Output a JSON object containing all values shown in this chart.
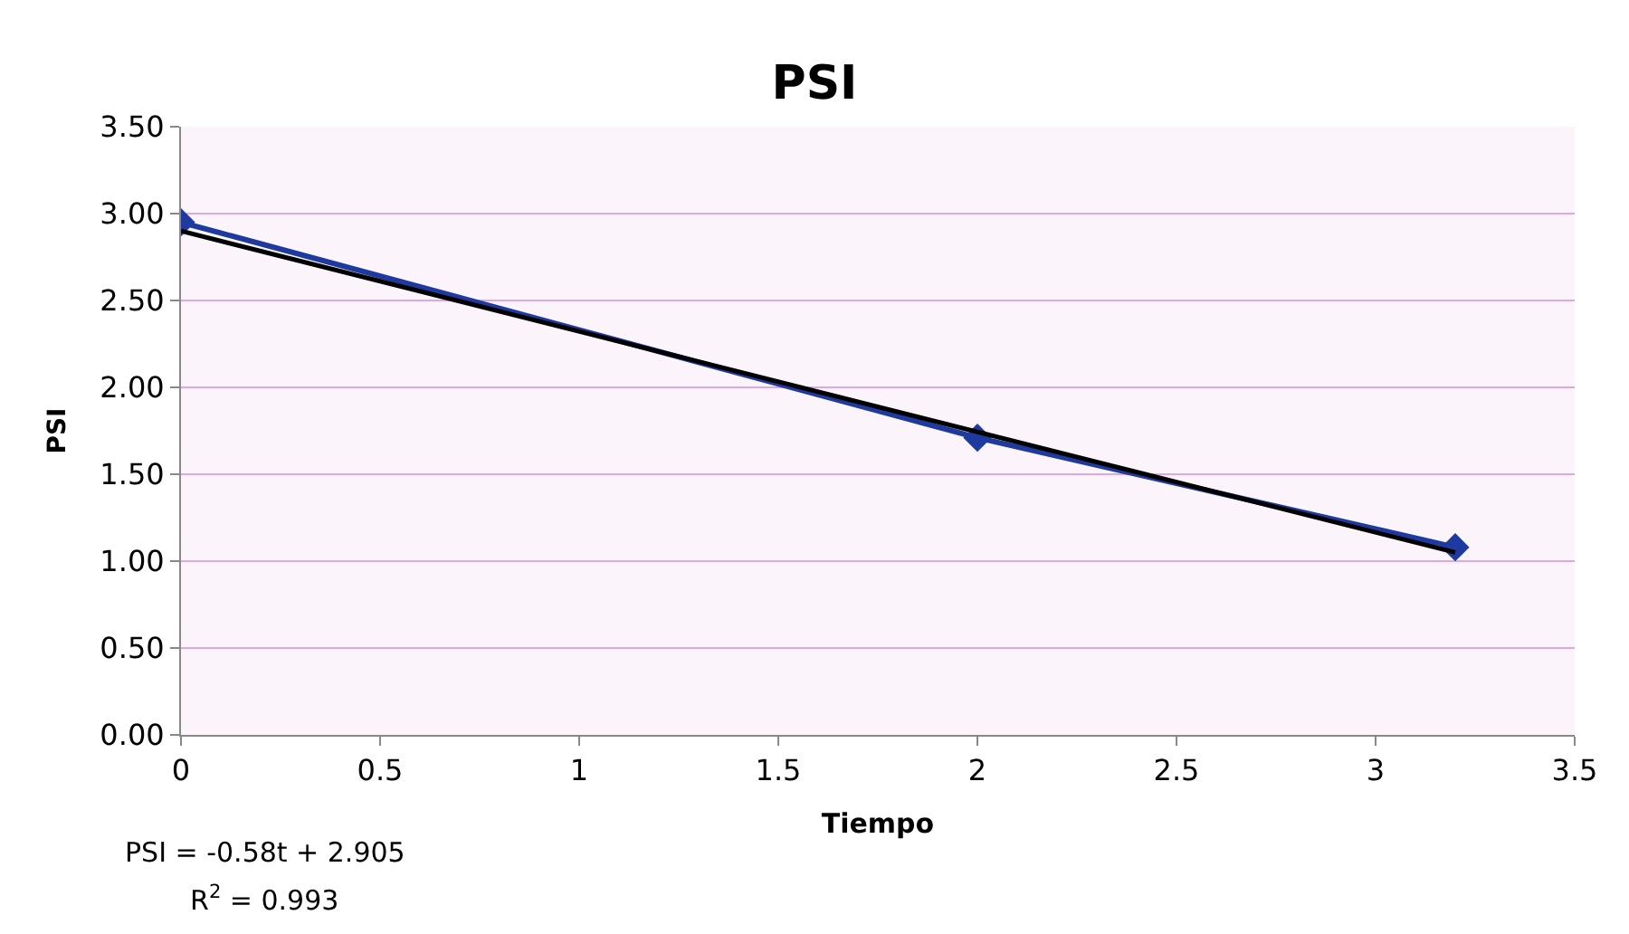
{
  "chart_data": {
    "type": "line",
    "title": "PSI",
    "xlabel": "Tiempo",
    "ylabel": "PSI",
    "x": [
      0,
      2,
      3.2
    ],
    "series": [
      {
        "color": "#1f3a9e",
        "values": [
          2.95,
          1.71,
          1.08
        ],
        "marker": "diamond"
      },
      {
        "type": "line",
        "color": "#000000",
        "x": [
          0,
          3.2
        ],
        "values": [
          2.9,
          1.05
        ],
        "marker": "none"
      }
    ],
    "xlim": [
      0,
      3.5
    ],
    "xticks": [
      0,
      0.5,
      1,
      1.5,
      2,
      2.5,
      3,
      3.5
    ],
    "ylim": [
      0,
      3.5
    ],
    "yticks": [
      {
        "value": 0,
        "label": "0.00"
      },
      {
        "value": 0.5,
        "label": "0.50"
      },
      {
        "value": 1,
        "label": "1.00"
      },
      {
        "value": 1.5,
        "label": "1.50"
      },
      {
        "value": 2,
        "label": "2.00"
      },
      {
        "value": 2.5,
        "label": "2.50"
      },
      {
        "value": 3,
        "label": "3.00"
      },
      {
        "value": 3.5,
        "label": "3.50"
      }
    ],
    "grid": "y",
    "annotations": [
      "PSI = -0.58t + 2.905",
      "R$^{2}$ = 0.993"
    ]
  }
}
